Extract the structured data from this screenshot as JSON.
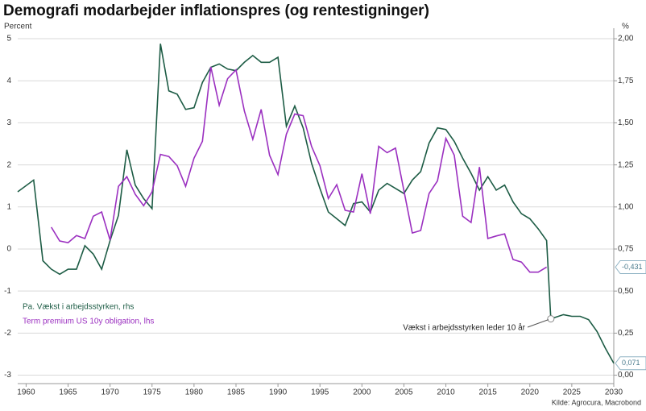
{
  "chart_data": {
    "type": "line",
    "title": "Demografi modarbejder inflationspres (og rentestigninger)",
    "y_label": "Percent",
    "y2_label": "%",
    "annotation": "Vækst i arbejdsstyrken leder 10 år",
    "source": "Kilde: Agrocura, Macrobond",
    "xlim": [
      1959,
      2030
    ],
    "xticks": [
      1960,
      1965,
      1970,
      1975,
      1980,
      1985,
      1990,
      1995,
      2000,
      2005,
      2010,
      2015,
      2020,
      2025,
      2030
    ],
    "ylim": [
      -3.2,
      5.25
    ],
    "yticks": [
      -3,
      -2,
      -1,
      0,
      1,
      2,
      3,
      4,
      5
    ],
    "y2lim": [
      -0.05,
      2.0625
    ],
    "y2ticks": [
      {
        "value": 0,
        "label": "0,00"
      },
      {
        "value": 0.25,
        "label": "0,25"
      },
      {
        "value": 0.5,
        "label": "0,50"
      },
      {
        "value": 0.75,
        "label": "0,75"
      },
      {
        "value": 1,
        "label": "1,00"
      },
      {
        "value": 1.25,
        "label": "1,25"
      },
      {
        "value": 1.5,
        "label": "1,50"
      },
      {
        "value": 1.75,
        "label": "1,75"
      },
      {
        "value": 2,
        "label": "2,00"
      }
    ],
    "grid": true,
    "series": [
      {
        "name": "Pa. Vækst i arbejdsstyrken, rhs",
        "color": "#1d5c45",
        "axis": "y2",
        "x": [
          1959,
          1960.9,
          1962,
          1963,
          1964,
          1965,
          1966,
          1967,
          1968,
          1969,
          1970,
          1971,
          1972,
          1973,
          1974,
          1975,
          1976,
          1977,
          1978,
          1979,
          1980,
          1981,
          1982,
          1983,
          1984,
          1985,
          1986,
          1987,
          1988,
          1989,
          1990,
          1991,
          1992,
          1993,
          1994,
          1995,
          1996,
          1997,
          1998,
          1999,
          2000,
          2001,
          2002,
          2003,
          2004,
          2005,
          2006,
          2007,
          2008,
          2009,
          2010,
          2011,
          2012,
          2013,
          2014,
          2015,
          2016,
          2017,
          2018,
          2019,
          2020,
          2021,
          2022,
          2022.5,
          2024,
          2025,
          2026,
          2027,
          2028,
          2029,
          2030
        ],
        "values": [
          1.09,
          1.16,
          0.68,
          0.63,
          0.6,
          0.63,
          0.63,
          0.77,
          0.72,
          0.63,
          0.8,
          0.95,
          1.34,
          1.13,
          1.05,
          0.99,
          1.97,
          1.69,
          1.67,
          1.58,
          1.59,
          1.74,
          1.83,
          1.85,
          1.82,
          1.81,
          1.86,
          1.9,
          1.86,
          1.86,
          1.89,
          1.48,
          1.6,
          1.47,
          1.26,
          1.11,
          0.97,
          0.93,
          0.89,
          1.02,
          1.03,
          0.97,
          1.1,
          1.14,
          1.11,
          1.08,
          1.16,
          1.21,
          1.38,
          1.47,
          1.46,
          1.39,
          1.29,
          1.2,
          1.1,
          1.18,
          1.1,
          1.13,
          1.03,
          0.96,
          0.93,
          0.87,
          0.8,
          0.335,
          0.36,
          0.35,
          0.35,
          0.33,
          0.26,
          0.16,
          0.071
        ],
        "value_labels": [
          null,
          null,
          null,
          null,
          null,
          null,
          null,
          null,
          null,
          null,
          null,
          null,
          null,
          null,
          null,
          null,
          null,
          null,
          null,
          null,
          null,
          null,
          null,
          null,
          null,
          null,
          null,
          null,
          null,
          null,
          null,
          null,
          null,
          null,
          null,
          null,
          null,
          null,
          null,
          null,
          null,
          null,
          null,
          null,
          null,
          null,
          null,
          null,
          null,
          null,
          null,
          null,
          null,
          null,
          null,
          null,
          null,
          null,
          null,
          null,
          null,
          null,
          null,
          null,
          null,
          null,
          null,
          null,
          null,
          null,
          "0,071"
        ]
      },
      {
        "name": "Term premium US 10y obligation, lhs",
        "color": "#9b30c0",
        "axis": "y",
        "x": [
          1963,
          1964,
          1965,
          1966,
          1967,
          1968,
          1969,
          1970,
          1971,
          1972,
          1973,
          1974,
          1975,
          1976,
          1977,
          1978,
          1979,
          1980,
          1981,
          1982,
          1983,
          1984,
          1985,
          1986,
          1987,
          1988,
          1989,
          1990,
          1991,
          1992,
          1993,
          1994,
          1995,
          1996,
          1997,
          1998,
          1999,
          2000,
          2001,
          2002,
          2003,
          2004,
          2005,
          2006,
          2007,
          2008,
          2009,
          2010,
          2011,
          2012,
          2013,
          2014,
          2015,
          2016,
          2017,
          2018,
          2019,
          2020,
          2021,
          2022
        ],
        "values": [
          0.52,
          0.19,
          0.15,
          0.32,
          0.25,
          0.78,
          0.88,
          0.21,
          1.49,
          1.72,
          1.3,
          1.03,
          1.36,
          2.25,
          2.2,
          1.98,
          1.49,
          2.16,
          2.56,
          4.33,
          3.42,
          4.05,
          4.26,
          3.28,
          2.61,
          3.32,
          2.23,
          1.77,
          2.73,
          3.21,
          3.17,
          2.44,
          1.98,
          1.2,
          1.53,
          0.92,
          0.88,
          1.79,
          0.84,
          2.44,
          2.29,
          2.4,
          1.39,
          0.38,
          0.44,
          1.32,
          1.62,
          2.63,
          2.23,
          0.78,
          0.63,
          1.95,
          0.25,
          0.31,
          0.36,
          -0.25,
          -0.31,
          -0.55,
          -0.55,
          -0.431
        ],
        "value_labels": [
          null,
          null,
          null,
          null,
          null,
          null,
          null,
          null,
          null,
          null,
          null,
          null,
          null,
          null,
          null,
          null,
          null,
          null,
          null,
          null,
          null,
          null,
          null,
          null,
          null,
          null,
          null,
          null,
          null,
          null,
          null,
          null,
          null,
          null,
          null,
          null,
          null,
          null,
          null,
          null,
          null,
          null,
          null,
          null,
          null,
          null,
          null,
          null,
          null,
          null,
          null,
          null,
          null,
          null,
          null,
          null,
          null,
          null,
          null,
          "-0,431"
        ]
      }
    ]
  }
}
